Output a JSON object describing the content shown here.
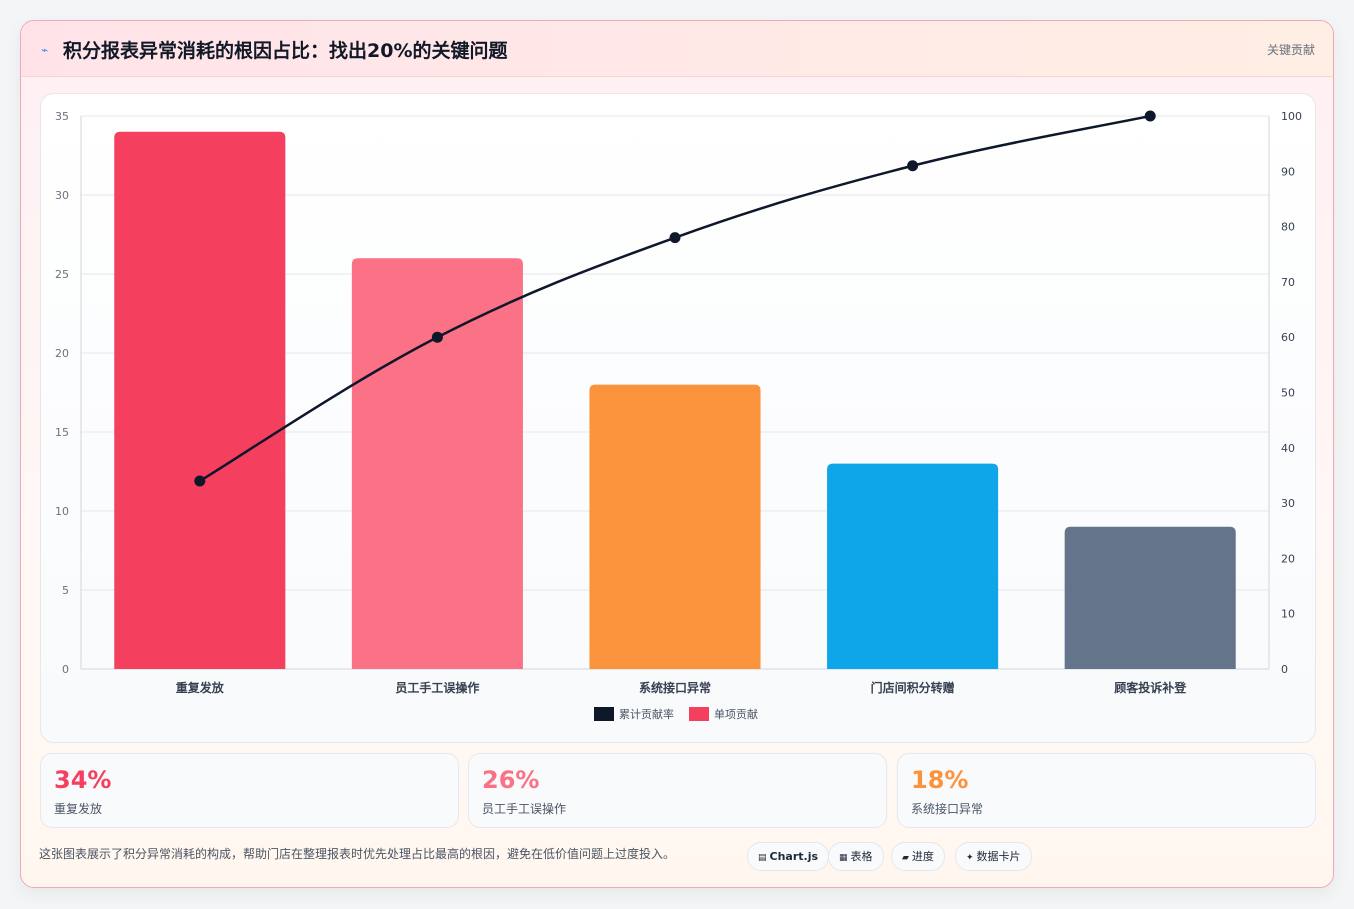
{
  "header": {
    "title_icon": "⌁",
    "title": "积分报表异常消耗的根因占比：找出20%的关键问题",
    "badge": "关键贡献"
  },
  "chart_data": {
    "type": "bar",
    "categories": [
      "重复发放",
      "员工手工误操作",
      "系统接口异常",
      "门店间积分转赠",
      "顾客投诉补登"
    ],
    "series": [
      {
        "name": "单项贡献",
        "type": "bar",
        "axis": "left",
        "values": [
          34,
          26,
          18,
          13,
          9
        ],
        "colors": [
          "#f43f5e",
          "#fb7185",
          "#fb923c",
          "#0ea5e9",
          "#64748b"
        ]
      },
      {
        "name": "累计贡献率",
        "type": "line",
        "axis": "right",
        "values": [
          34,
          60,
          78,
          91,
          100
        ],
        "color": "#0f172a"
      }
    ],
    "y_left": {
      "min": 0,
      "max": 35,
      "ticks": [
        0,
        5,
        10,
        15,
        20,
        25,
        30,
        35
      ]
    },
    "y_right": {
      "min": 0,
      "max": 100,
      "ticks": [
        0,
        10,
        20,
        30,
        40,
        50,
        60,
        70,
        80,
        90,
        100
      ]
    },
    "grid": true,
    "legend": {
      "position": "bottom",
      "entries": [
        "累计贡献率",
        "单项贡献"
      ]
    }
  },
  "kpis": [
    {
      "value": "34%",
      "label": "重复发放",
      "color": "#f43f5e"
    },
    {
      "value": "26%",
      "label": "员工手工误操作",
      "color": "#fb7185"
    },
    {
      "value": "18%",
      "label": "系统接口异常",
      "color": "#fb923c"
    }
  ],
  "footer": {
    "text": "这张图表展示了积分异常消耗的构成，帮助门店在整理报表时优先处理占比最高的根因，避免在低价值问题上过度投入。",
    "chips": [
      {
        "icon": "▤",
        "label": "Chart.js"
      },
      {
        "icon": "▦",
        "label": "表格"
      },
      {
        "icon": "▰",
        "label": "进度"
      },
      {
        "icon": "✦",
        "label": "数据卡片"
      }
    ]
  }
}
